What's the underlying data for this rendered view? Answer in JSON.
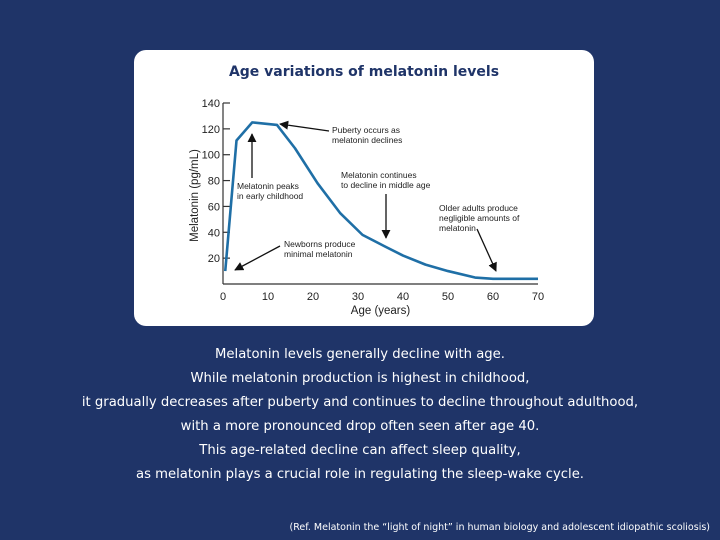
{
  "chart_data": {
    "type": "line",
    "title": "Age variations of melatonin levels",
    "xlabel": "Age (years)",
    "ylabel": "Melatonin (pg/mL)",
    "xlim": [
      0,
      70
    ],
    "ylim": [
      0,
      140
    ],
    "x_ticks": [
      0,
      10,
      20,
      30,
      40,
      50,
      60,
      70
    ],
    "y_ticks": [
      20,
      40,
      60,
      80,
      100,
      120,
      140
    ],
    "series": [
      {
        "color": "#1f6fa6",
        "x": [
          0.5,
          3,
          6.5,
          12,
          16,
          21,
          26,
          31,
          36,
          40,
          45,
          50,
          56,
          60,
          64,
          70
        ],
        "y": [
          10,
          111,
          125,
          123,
          105,
          78,
          55,
          38,
          29,
          22,
          15,
          10,
          5,
          4,
          4,
          4
        ]
      }
    ],
    "annotations": [
      {
        "label": "Newborns produce\nminimal melatonin",
        "x": 1,
        "y": 12
      },
      {
        "label": "Melatonin peaks\nin early childhood",
        "x": 6.5,
        "y": 124
      },
      {
        "label": "Puberty occurs as\nmelatonin declines",
        "x": 12.5,
        "y": 123
      },
      {
        "label": "Melatonin continues\nto decline in middle age",
        "x": 36,
        "y": 30
      },
      {
        "label": "Older adults produce\nnegligible amounts of\nmelatonin",
        "x": 61,
        "y": 4
      }
    ]
  },
  "caption_lines": [
    "Melatonin levels generally decline with age.",
    "While melatonin production is highest in childhood,",
    "it gradually decreases after puberty and continues to decline throughout adulthood,",
    "with a more pronounced drop often seen after age 40.",
    "This age-related decline can affect sleep quality,",
    "as melatonin plays a crucial role in regulating the sleep-wake cycle."
  ],
  "reference": "(Ref. Melatonin the “light of night” in human biology and adolescent idiopathic scoliosis)"
}
